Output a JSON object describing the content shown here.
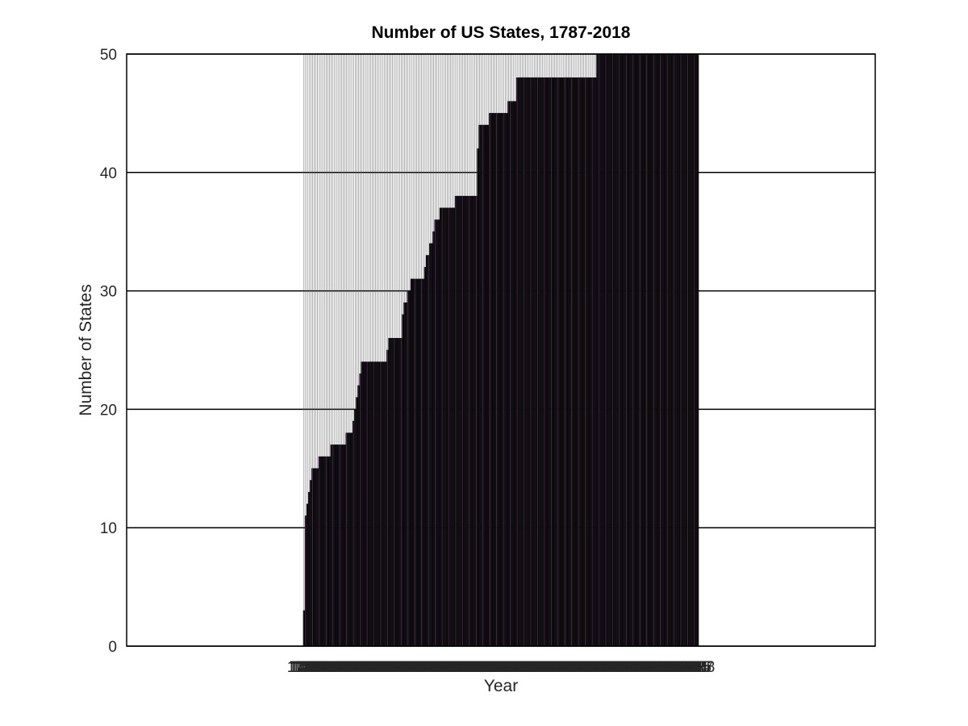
{
  "chart_data": {
    "type": "bar",
    "title": "Number of US States, 1787-2018",
    "xlabel": "Year",
    "ylabel": "Number of States",
    "xlim": [
      1683,
      2122
    ],
    "ylim": [
      0,
      50
    ],
    "yticks": [
      0,
      10,
      20,
      30,
      40,
      50
    ],
    "grid": "y-major",
    "colors": {
      "bar_edge": "#000000",
      "bar_face": "#ffffff",
      "inner_line": "#7b2d8b",
      "grid": "#000000",
      "text": "#262626"
    },
    "statehood_steps": [
      {
        "year": 1787,
        "value": 3
      },
      {
        "year": 1788,
        "value": 11
      },
      {
        "year": 1789,
        "value": 12
      },
      {
        "year": 1790,
        "value": 13
      },
      {
        "year": 1791,
        "value": 14
      },
      {
        "year": 1792,
        "value": 15
      },
      {
        "year": 1796,
        "value": 16
      },
      {
        "year": 1803,
        "value": 17
      },
      {
        "year": 1812,
        "value": 18
      },
      {
        "year": 1816,
        "value": 19
      },
      {
        "year": 1817,
        "value": 20
      },
      {
        "year": 1818,
        "value": 21
      },
      {
        "year": 1819,
        "value": 22
      },
      {
        "year": 1820,
        "value": 23
      },
      {
        "year": 1821,
        "value": 24
      },
      {
        "year": 1836,
        "value": 25
      },
      {
        "year": 1837,
        "value": 26
      },
      {
        "year": 1845,
        "value": 28
      },
      {
        "year": 1846,
        "value": 29
      },
      {
        "year": 1848,
        "value": 30
      },
      {
        "year": 1850,
        "value": 31
      },
      {
        "year": 1858,
        "value": 32
      },
      {
        "year": 1859,
        "value": 33
      },
      {
        "year": 1861,
        "value": 34
      },
      {
        "year": 1863,
        "value": 35
      },
      {
        "year": 1864,
        "value": 36
      },
      {
        "year": 1867,
        "value": 37
      },
      {
        "year": 1876,
        "value": 38
      },
      {
        "year": 1889,
        "value": 42
      },
      {
        "year": 1890,
        "value": 44
      },
      {
        "year": 1896,
        "value": 45
      },
      {
        "year": 1907,
        "value": 46
      },
      {
        "year": 1912,
        "value": 48
      },
      {
        "year": 1959,
        "value": 50
      }
    ],
    "year_range": [
      1787,
      2018
    ]
  }
}
